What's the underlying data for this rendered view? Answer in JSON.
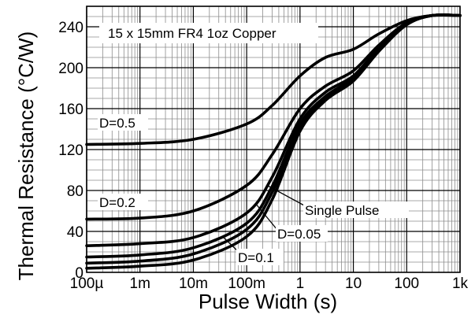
{
  "chart_data": {
    "type": "line",
    "xscale": "log",
    "xlim": [
      0.0001,
      1000
    ],
    "ylim": [
      0,
      260
    ],
    "xlabel": "Pulse Width (s)",
    "ylabel": "Thermal Resistance (°C/W)",
    "x_ticks": [
      {
        "value": 0.0001,
        "label": "100µ"
      },
      {
        "value": 0.001,
        "label": "1m"
      },
      {
        "value": 0.01,
        "label": "10m"
      },
      {
        "value": 0.1,
        "label": "100m"
      },
      {
        "value": 1,
        "label": "1"
      },
      {
        "value": 10,
        "label": "10"
      },
      {
        "value": 100,
        "label": "100"
      },
      {
        "value": 1000,
        "label": "1k"
      }
    ],
    "y_ticks": [
      {
        "value": 0,
        "label": "0"
      },
      {
        "value": 40,
        "label": "40"
      },
      {
        "value": 80,
        "label": "80"
      },
      {
        "value": 120,
        "label": "120"
      },
      {
        "value": 160,
        "label": "160"
      },
      {
        "value": 200,
        "label": "200"
      },
      {
        "value": 240,
        "label": "240"
      }
    ],
    "grid": true,
    "annotation": "15 x 15mm FR4 1oz Copper",
    "x": [
      0.0001,
      0.001,
      0.01,
      0.1,
      0.3,
      1,
      3,
      10,
      30,
      100,
      300,
      1000
    ],
    "series": [
      {
        "name": "D=0.5",
        "values": [
          125,
          126,
          130,
          145,
          163,
          192,
          210,
          218,
          233,
          246,
          251,
          251
        ]
      },
      {
        "name": "D=0.2",
        "values": [
          52,
          53,
          60,
          85,
          115,
          160,
          182,
          197,
          222,
          244,
          251,
          251
        ]
      },
      {
        "name": "",
        "values": [
          26,
          28,
          34,
          58,
          93,
          150,
          176,
          192,
          219,
          243,
          251,
          251
        ]
      },
      {
        "name": "D=0.1",
        "values": [
          15,
          17,
          24,
          48,
          84,
          145,
          172,
          190,
          218,
          243,
          251,
          251
        ]
      },
      {
        "name": "D=0.05",
        "values": [
          9,
          11,
          18,
          42,
          78,
          142,
          170,
          188,
          217,
          242,
          251,
          251
        ]
      },
      {
        "name": "Single Pulse",
        "values": [
          4,
          6,
          12,
          35,
          71,
          138,
          168,
          187,
          216,
          242,
          251,
          251
        ]
      }
    ],
    "labels": [
      {
        "text": "D=0.5"
      },
      {
        "text": "D=0.2"
      },
      {
        "text": "D=0.1"
      },
      {
        "text": "D=0.05"
      },
      {
        "text": "Single Pulse"
      }
    ]
  }
}
